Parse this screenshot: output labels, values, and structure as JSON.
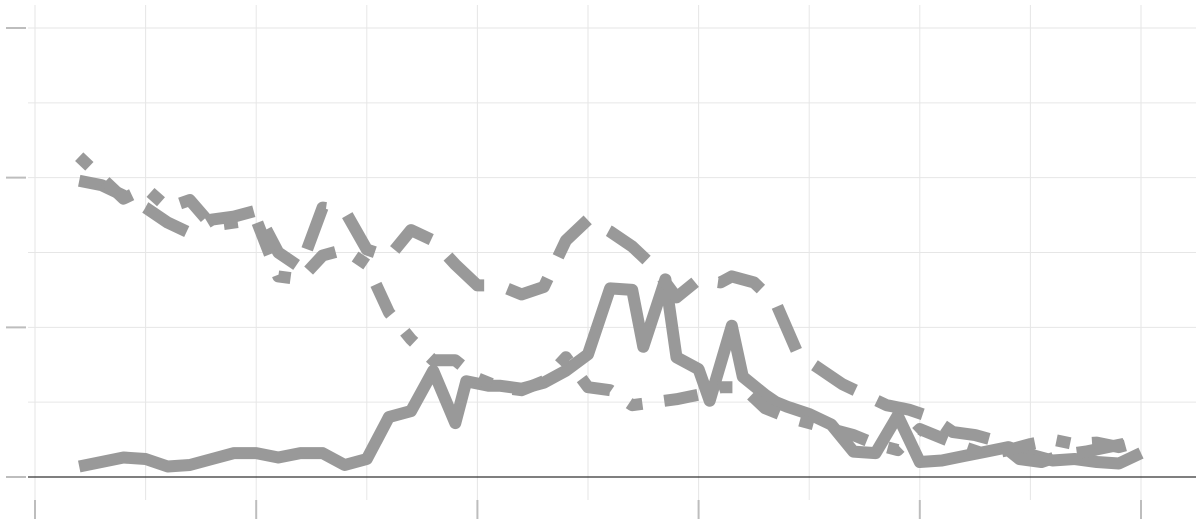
{
  "chart_data": {
    "type": "line",
    "title": "",
    "xlabel": "",
    "ylabel": "",
    "xlim": [
      0,
      100
    ],
    "ylim": [
      0,
      3
    ],
    "x_ticks": [
      0,
      20,
      40,
      60,
      80,
      100
    ],
    "y_ticks": [
      0,
      1,
      2,
      3
    ],
    "grid": true,
    "legend": "none",
    "colors": {
      "series": "#999999",
      "grid": "#e6e6e6",
      "baseline": "#333333",
      "ticks": "#bdbdbd"
    },
    "series": [
      {
        "dash": "solid",
        "x": [
          4,
          6,
          8,
          10,
          12,
          14,
          16,
          18,
          20,
          22,
          24,
          26,
          28,
          30,
          32,
          34,
          36,
          38,
          39,
          41,
          42,
          44,
          46,
          48,
          50,
          52,
          54,
          55,
          57,
          58,
          60,
          61,
          63,
          64,
          66,
          67,
          68,
          70,
          72,
          74,
          76,
          78,
          80,
          82,
          84,
          86,
          88,
          90,
          92,
          94,
          96,
          98,
          100
        ],
        "y": [
          0.07,
          0.1,
          0.13,
          0.12,
          0.07,
          0.08,
          0.12,
          0.16,
          0.16,
          0.13,
          0.16,
          0.16,
          0.08,
          0.12,
          0.4,
          0.44,
          0.71,
          0.36,
          0.64,
          0.61,
          0.61,
          0.59,
          0.63,
          0.71,
          0.82,
          1.26,
          1.25,
          0.87,
          1.32,
          0.8,
          0.72,
          0.51,
          1.01,
          0.67,
          0.55,
          0.5,
          0.47,
          0.42,
          0.35,
          0.17,
          0.16,
          0.41,
          0.1,
          0.11,
          0.14,
          0.17,
          0.2,
          0.15,
          0.11,
          0.12,
          0.1,
          0.09,
          0.16
        ]
      },
      {
        "dash": "long-dash",
        "x": [
          4,
          6,
          8,
          10,
          12,
          14,
          16,
          18,
          20,
          22,
          24,
          26,
          28,
          30,
          32,
          34,
          36,
          38,
          40,
          42,
          44,
          46,
          48,
          50,
          52,
          54,
          56,
          58,
          60,
          62,
          63,
          65,
          67,
          69,
          71,
          73,
          75,
          77,
          79,
          81,
          83,
          85,
          87,
          89,
          91,
          93,
          95,
          97,
          99,
          100
        ],
        "y": [
          1.98,
          1.95,
          1.88,
          1.8,
          1.7,
          1.63,
          1.72,
          1.74,
          1.78,
          1.5,
          1.4,
          1.8,
          1.78,
          1.52,
          1.47,
          1.65,
          1.58,
          1.42,
          1.28,
          1.28,
          1.22,
          1.27,
          1.58,
          1.72,
          1.64,
          1.54,
          1.4,
          1.2,
          1.32,
          1.3,
          1.34,
          1.3,
          1.16,
          0.82,
          0.72,
          0.62,
          0.55,
          0.48,
          0.45,
          0.4,
          0.3,
          0.28,
          0.24,
          0.12,
          0.1,
          0.15,
          0.17,
          0.2,
          0.23,
          0.25
        ]
      },
      {
        "dash": "dot-dash",
        "x": [
          4,
          6,
          8,
          10,
          12,
          14,
          16,
          18,
          20,
          22,
          24,
          26,
          28,
          30,
          32,
          34,
          36,
          38,
          40,
          42,
          44,
          46,
          48,
          50,
          52,
          54,
          56,
          58,
          60,
          62,
          64,
          66,
          68,
          70,
          72,
          74,
          76,
          78,
          80,
          82,
          84,
          86,
          88,
          90,
          92,
          94,
          96,
          98,
          100
        ],
        "y": [
          2.14,
          2.0,
          1.86,
          1.93,
          1.8,
          1.85,
          1.68,
          1.7,
          1.72,
          1.34,
          1.32,
          1.48,
          1.52,
          1.42,
          1.1,
          0.92,
          0.78,
          0.78,
          0.66,
          0.6,
          0.58,
          0.64,
          0.8,
          0.6,
          0.58,
          0.48,
          0.5,
          0.52,
          0.55,
          0.6,
          0.6,
          0.46,
          0.4,
          0.36,
          0.32,
          0.28,
          0.22,
          0.18,
          0.32,
          0.26,
          0.2,
          0.15,
          0.18,
          0.22,
          0.25,
          0.22,
          0.23,
          0.2,
          0.24
        ]
      }
    ]
  }
}
